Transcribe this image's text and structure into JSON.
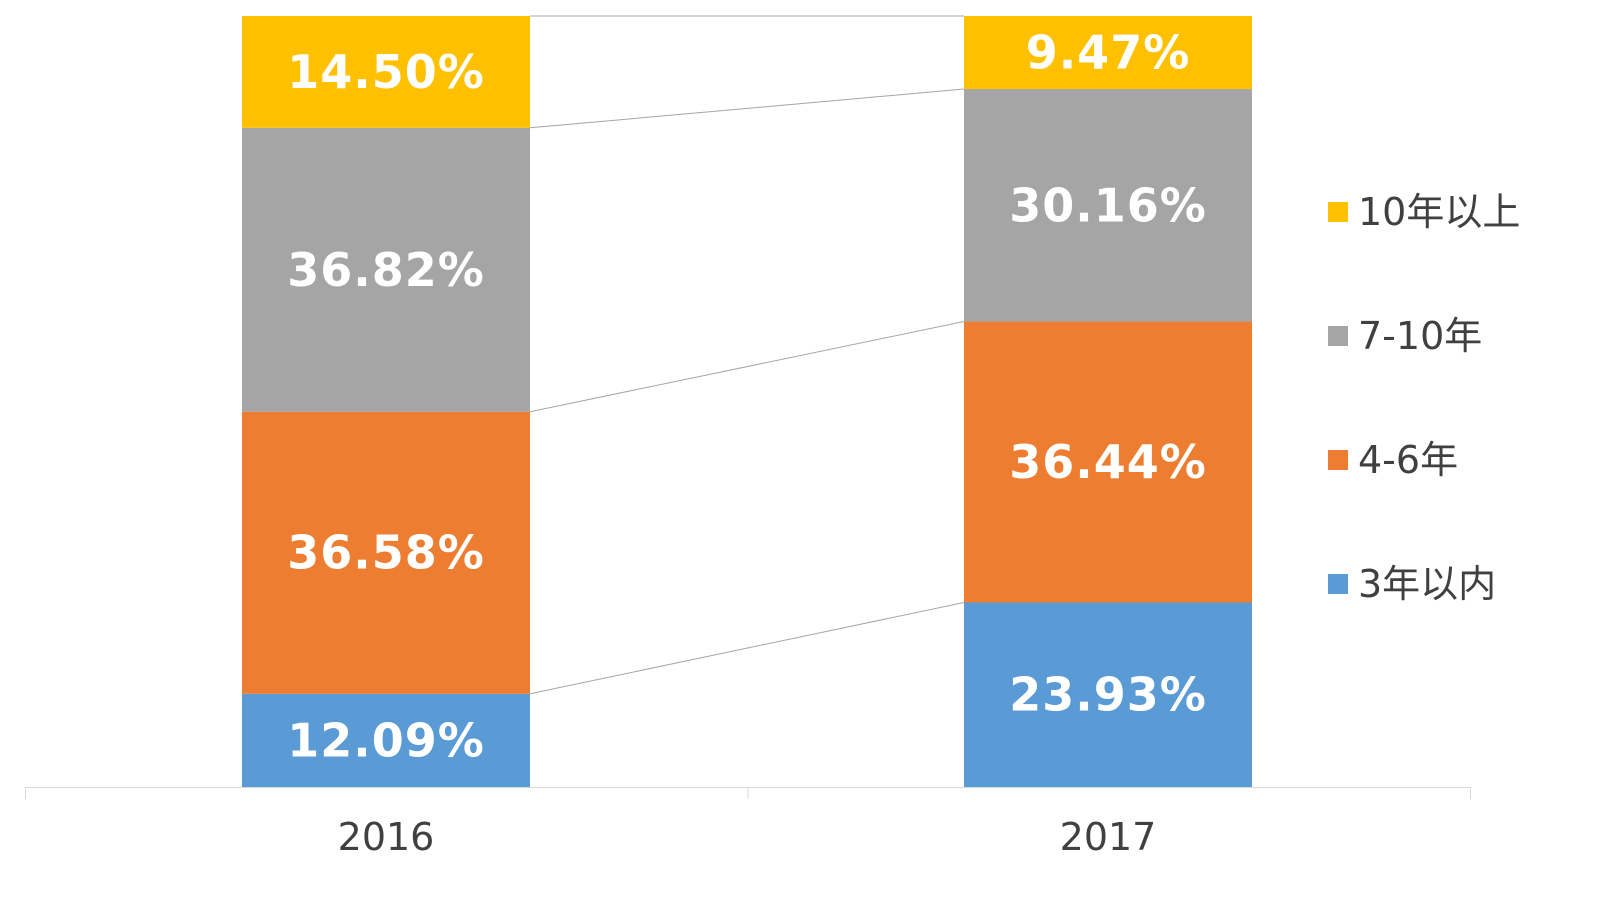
{
  "chart_data": {
    "type": "bar",
    "stacked": true,
    "percent_stacked": true,
    "categories": [
      "2016",
      "2017"
    ],
    "series": [
      {
        "name": "3年以内",
        "values": [
          12.09,
          23.93
        ],
        "labels": [
          "12.09%",
          "23.93%"
        ],
        "color": "#5B9BD5"
      },
      {
        "name": "4-6年",
        "values": [
          36.58,
          36.44
        ],
        "labels": [
          "36.58%",
          "36.44%"
        ],
        "color": "#ED7D31"
      },
      {
        "name": "7-10年",
        "values": [
          36.82,
          30.16
        ],
        "labels": [
          "36.82%",
          "30.16%"
        ],
        "color": "#A5A5A5"
      },
      {
        "name": "10年以上",
        "values": [
          14.5,
          9.47
        ],
        "labels": [
          "14.50%",
          "9.47%"
        ],
        "color": "#FFC000"
      }
    ],
    "legend_order": [
      "10年以上",
      "7-10年",
      "4-6年",
      "3年以内"
    ],
    "legend_position": "right",
    "series_lines": true,
    "ylim": [
      0,
      100
    ],
    "grid": false,
    "title": "",
    "xlabel": "",
    "ylabel": ""
  }
}
